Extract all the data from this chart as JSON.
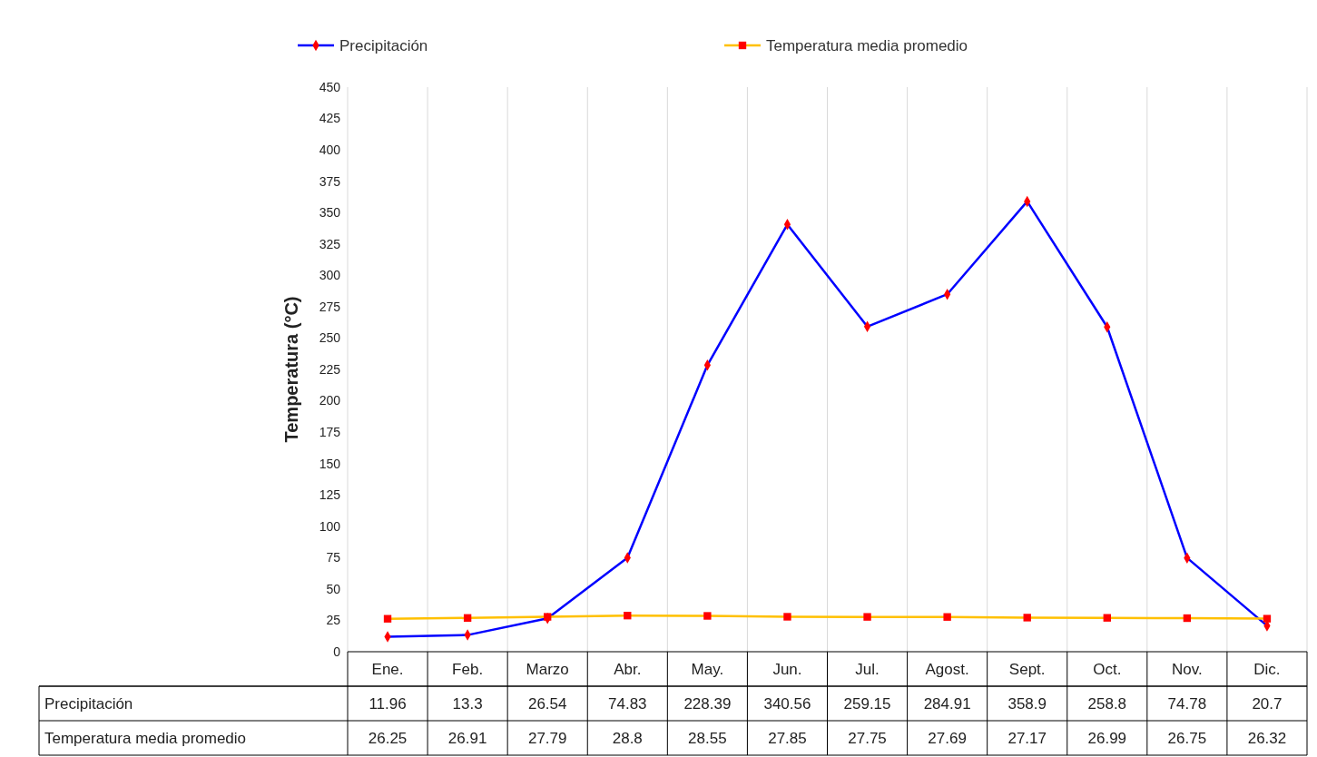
{
  "chart_data": {
    "type": "line",
    "ylabel": "Temperatura  (°C)",
    "categories": [
      "Ene.",
      "Feb.",
      "Marzo",
      "Abr.",
      "May.",
      "Jun.",
      "Jul.",
      "Agost.",
      "Sept.",
      "Oct.",
      "Nov.",
      "Dic."
    ],
    "series": [
      {
        "name": "Precipitación",
        "color": "#0000ff",
        "marker": "diamond",
        "values": [
          11.96,
          13.3,
          26.54,
          74.83,
          228.39,
          340.56,
          259.15,
          284.91,
          358.9,
          258.8,
          74.78,
          20.7
        ]
      },
      {
        "name": "Temperatura media promedio",
        "color": "#ffc000",
        "marker": "square",
        "values": [
          26.25,
          26.91,
          27.79,
          28.8,
          28.55,
          27.85,
          27.75,
          27.69,
          27.17,
          26.99,
          26.75,
          26.32
        ]
      }
    ],
    "ylim": [
      0,
      450
    ],
    "yticks": [
      0,
      25,
      50,
      75,
      100,
      125,
      150,
      175,
      200,
      225,
      250,
      275,
      300,
      325,
      350,
      375,
      400,
      425,
      450
    ],
    "grid": "x",
    "legend": "top",
    "data_labels": true
  }
}
